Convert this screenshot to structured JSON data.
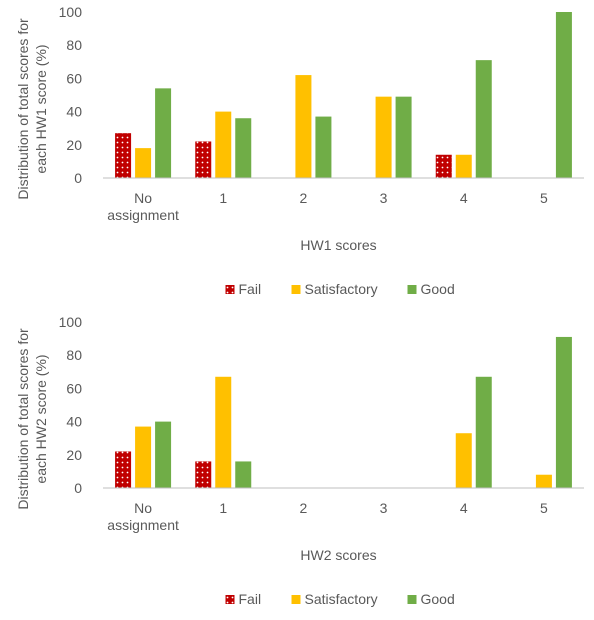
{
  "chart_data": [
    {
      "type": "bar",
      "categories": [
        "No assignment",
        "1",
        "2",
        "3",
        "4",
        "5"
      ],
      "series": [
        {
          "name": "Fail",
          "values": [
            27,
            22,
            0,
            0,
            14,
            0
          ]
        },
        {
          "name": "Satisfactory",
          "values": [
            18,
            40,
            62,
            49,
            14,
            0
          ]
        },
        {
          "name": "Good",
          "values": [
            54,
            36,
            37,
            49,
            71,
            100
          ]
        }
      ],
      "xlabel": "HW1 scores",
      "ylabel": "Distribution of total scores for each HW1 score (%)",
      "ylim": [
        0,
        100
      ],
      "yticks": [
        0,
        20,
        40,
        60,
        80,
        100
      ],
      "grid": false,
      "legend": "bottom"
    },
    {
      "type": "bar",
      "categories": [
        "No assignment",
        "1",
        "2",
        "3",
        "4",
        "5"
      ],
      "series": [
        {
          "name": "Fail",
          "values": [
            22,
            16,
            0,
            0,
            0,
            0
          ]
        },
        {
          "name": "Satisfactory",
          "values": [
            37,
            67,
            0,
            0,
            33,
            8
          ]
        },
        {
          "name": "Good",
          "values": [
            40,
            16,
            0,
            0,
            67,
            91
          ]
        }
      ],
      "xlabel": "HW2 scores",
      "ylabel": "Distribution of total scores for each HW2 score (%)",
      "ylim": [
        0,
        100
      ],
      "yticks": [
        0,
        20,
        40,
        60,
        80,
        100
      ],
      "grid": false,
      "legend": "bottom"
    }
  ],
  "colors": {
    "Fail": "#c00000",
    "Satisfactory": "#ffc000",
    "Good": "#70ad47",
    "axis": "#bfbfbf",
    "text": "#595959"
  }
}
